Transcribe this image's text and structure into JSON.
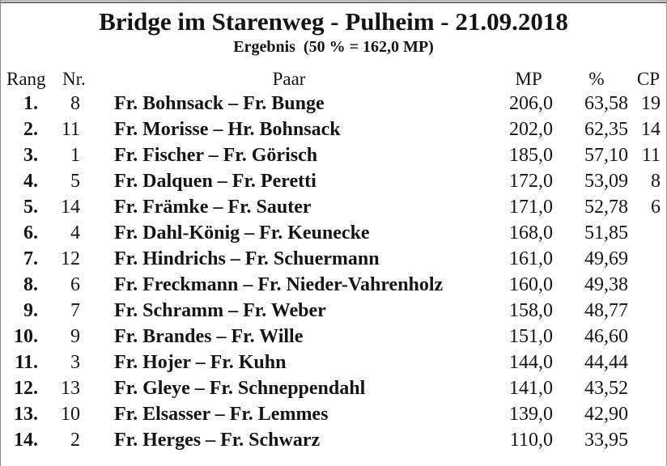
{
  "page": {
    "title": "Bridge im Starenweg - Pulheim - 21.09.2018",
    "subtitle": "Ergebnis  (50 % = 162,0 MP)"
  },
  "colors": {
    "text": "#141414",
    "frame": "#8a8a8a",
    "top_rule": "#6e6e6e",
    "background": "#ffffff"
  },
  "table": {
    "headers": {
      "rank": "Rang",
      "nr": "Nr.",
      "pair": "Paar",
      "mp": "MP",
      "pct": "%",
      "cp": "CP"
    },
    "rows": [
      {
        "rank": "1.",
        "nr": "8",
        "pair": "Fr. Bohnsack – Fr. Bunge",
        "mp": "206,0",
        "pct": "63,58",
        "cp": "19"
      },
      {
        "rank": "2.",
        "nr": "11",
        "pair": "Fr. Morisse – Hr. Bohnsack",
        "mp": "202,0",
        "pct": "62,35",
        "cp": "14"
      },
      {
        "rank": "3.",
        "nr": "1",
        "pair": "Fr. Fischer – Fr. Görisch",
        "mp": "185,0",
        "pct": "57,10",
        "cp": "11"
      },
      {
        "rank": "4.",
        "nr": "5",
        "pair": "Fr. Dalquen – Fr. Peretti",
        "mp": "172,0",
        "pct": "53,09",
        "cp": "8"
      },
      {
        "rank": "5.",
        "nr": "14",
        "pair": "Fr. Främke – Fr. Sauter",
        "mp": "171,0",
        "pct": "52,78",
        "cp": "6"
      },
      {
        "rank": "6.",
        "nr": "4",
        "pair": "Fr. Dahl-König – Fr. Keunecke",
        "mp": "168,0",
        "pct": "51,85",
        "cp": ""
      },
      {
        "rank": "7.",
        "nr": "12",
        "pair": "Fr. Hindrichs – Fr. Schuermann",
        "mp": "161,0",
        "pct": "49,69",
        "cp": ""
      },
      {
        "rank": "8.",
        "nr": "6",
        "pair": "Fr. Freckmann – Fr. Nieder-Vahrenholz",
        "mp": "160,0",
        "pct": "49,38",
        "cp": ""
      },
      {
        "rank": "9.",
        "nr": "7",
        "pair": "Fr. Schramm – Fr. Weber",
        "mp": "158,0",
        "pct": "48,77",
        "cp": ""
      },
      {
        "rank": "10.",
        "nr": "9",
        "pair": "Fr. Brandes – Fr. Wille",
        "mp": "151,0",
        "pct": "46,60",
        "cp": ""
      },
      {
        "rank": "11.",
        "nr": "3",
        "pair": "Fr. Hojer – Fr. Kuhn",
        "mp": "144,0",
        "pct": "44,44",
        "cp": ""
      },
      {
        "rank": "12.",
        "nr": "13",
        "pair": "Fr. Gleye – Fr. Schneppendahl",
        "mp": "141,0",
        "pct": "43,52",
        "cp": ""
      },
      {
        "rank": "13.",
        "nr": "10",
        "pair": "Fr. Elsasser – Fr. Lemmes",
        "mp": "139,0",
        "pct": "42,90",
        "cp": ""
      },
      {
        "rank": "14.",
        "nr": "2",
        "pair": "Fr. Herges – Fr. Schwarz",
        "mp": "110,0",
        "pct": "33,95",
        "cp": ""
      }
    ]
  }
}
